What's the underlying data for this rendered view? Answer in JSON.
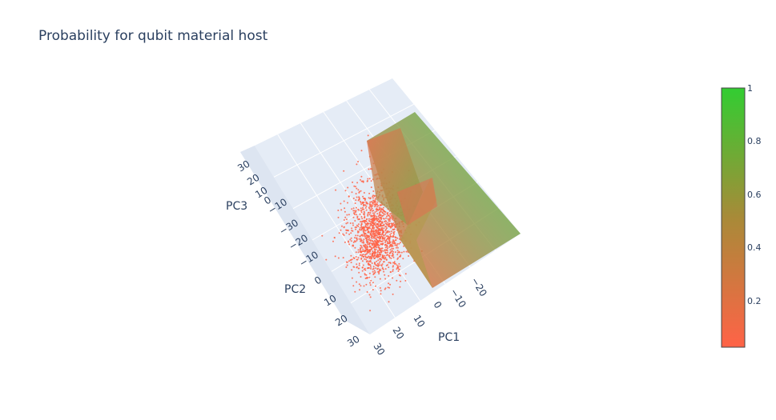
{
  "chart_data": {
    "type": "scatter",
    "title": "Probability for qubit material host",
    "axes": {
      "x": {
        "label": "PC1",
        "ticks": [
          "30",
          "20",
          "10",
          "0",
          "−10",
          "−20"
        ]
      },
      "y": {
        "label": "PC2",
        "ticks": [
          "−30",
          "−20",
          "−10",
          "0",
          "10",
          "20",
          "30"
        ]
      },
      "z": {
        "label": "PC3",
        "ticks": [
          "30",
          "20",
          "10",
          "0",
          "−10"
        ]
      }
    },
    "colorbar": {
      "ticks": [
        "1",
        "0.8",
        "0.6",
        "0.4",
        "0.2"
      ],
      "range": [
        0.02,
        1
      ],
      "colorscale": [
        "#ff6347",
        "#32cd32"
      ]
    },
    "series": [
      {
        "kind": "points",
        "color": "#ff6347"
      },
      {
        "kind": "surface"
      }
    ],
    "grid": true
  }
}
